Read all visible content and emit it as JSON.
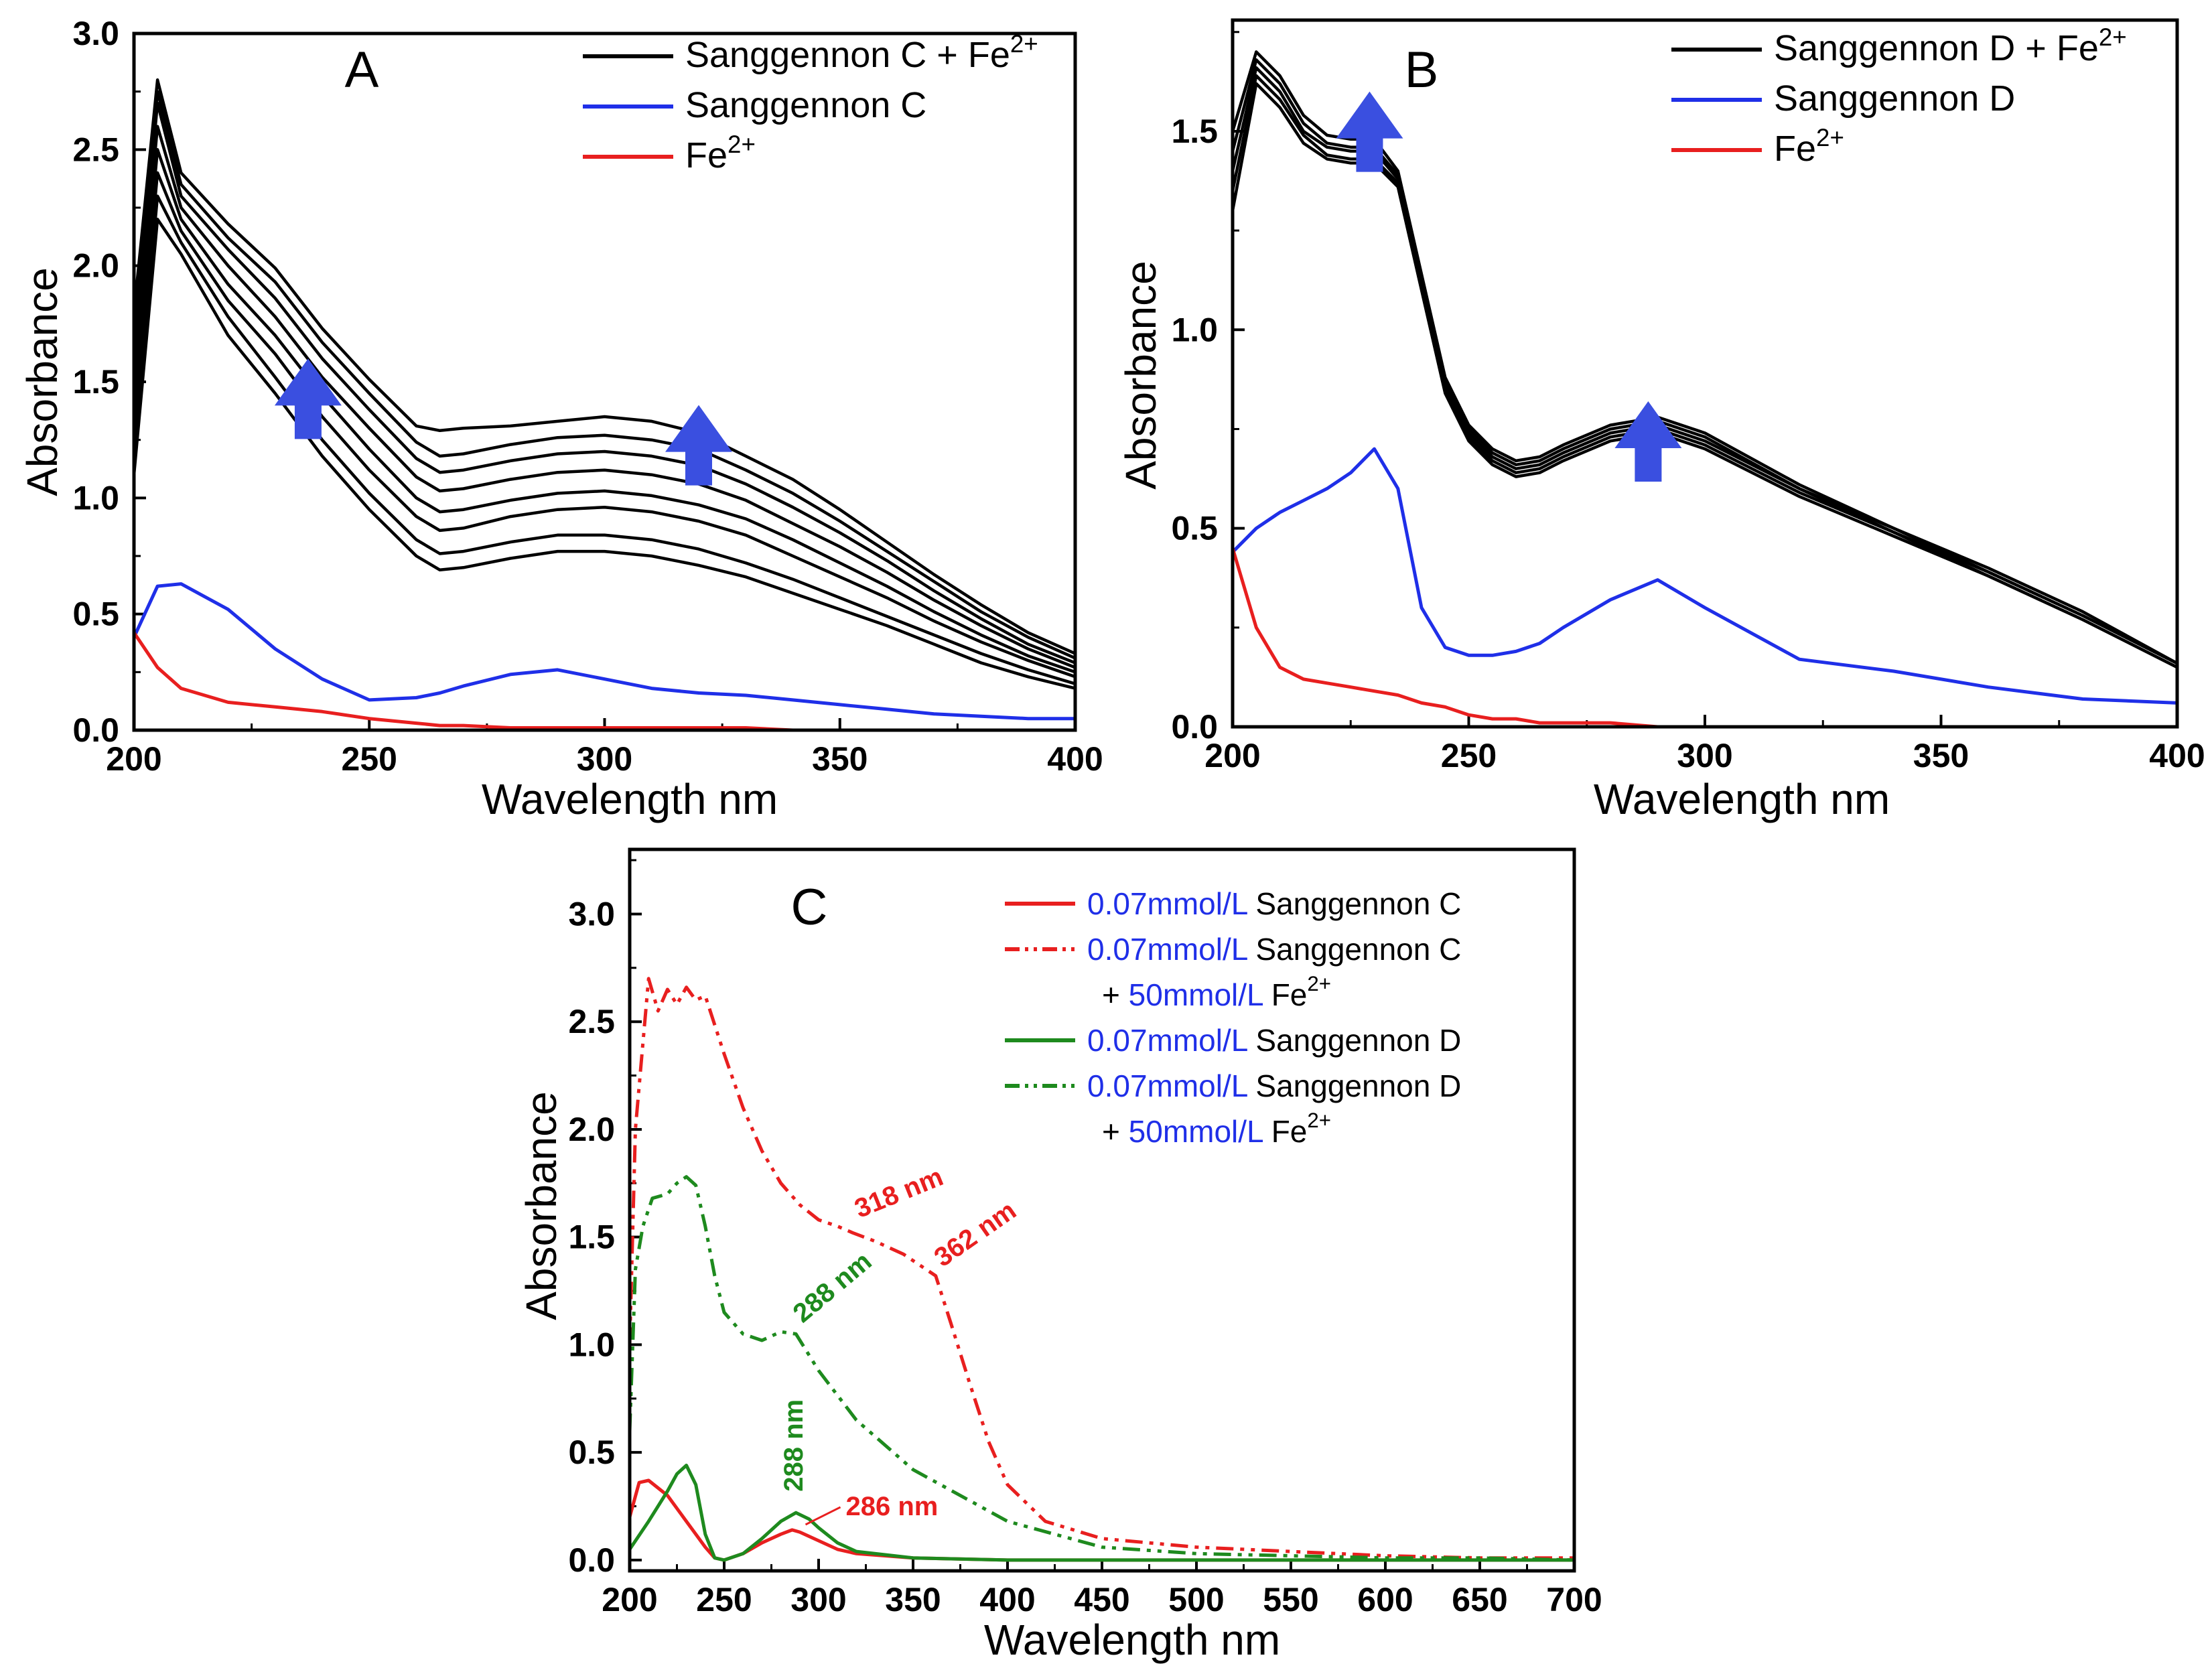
{
  "chart_data": [
    {
      "panel": "A",
      "type": "line",
      "xlabel": "Wavelength    nm",
      "ylabel": "Absorbance",
      "xlim": [
        200,
        400
      ],
      "ylim": [
        0,
        3.0
      ],
      "xticks": [
        "200",
        "250",
        "300",
        "350",
        "400"
      ],
      "yticks": [
        "0.0",
        "0.5",
        "1.0",
        "1.5",
        "2.0",
        "2.5",
        "3.0"
      ],
      "legend_position": "top-right",
      "legend": [
        {
          "base": "Sanggennon C + Fe",
          "sup": "2+",
          "color": "#000000"
        },
        {
          "base": "Sanggennon C",
          "sup": "",
          "color": "#1f2fe8"
        },
        {
          "base": "Fe",
          "sup": "2+",
          "color": "#e81f1f"
        }
      ],
      "arrows": [
        {
          "x": 237,
          "y": 1.6
        },
        {
          "x": 320,
          "y": 1.4
        }
      ],
      "x": [
        200,
        205,
        210,
        220,
        230,
        240,
        250,
        260,
        265,
        270,
        280,
        290,
        300,
        310,
        320,
        330,
        340,
        350,
        360,
        370,
        380,
        390,
        400
      ],
      "series": [
        {
          "name": "Sanggennon C + Fe2+ (1)",
          "color": "#000000",
          "values": [
            1.1,
            2.2,
            2.05,
            1.7,
            1.45,
            1.18,
            0.95,
            0.75,
            0.69,
            0.7,
            0.74,
            0.77,
            0.77,
            0.75,
            0.71,
            0.66,
            0.59,
            0.52,
            0.45,
            0.37,
            0.29,
            0.23,
            0.18
          ]
        },
        {
          "name": "Sanggennon C + Fe2+ (2)",
          "color": "#000000",
          "values": [
            1.2,
            2.3,
            2.1,
            1.78,
            1.52,
            1.25,
            1.02,
            0.82,
            0.76,
            0.77,
            0.81,
            0.84,
            0.84,
            0.82,
            0.78,
            0.72,
            0.65,
            0.57,
            0.49,
            0.41,
            0.33,
            0.26,
            0.2
          ]
        },
        {
          "name": "Sanggennon C + Fe2+ (3)",
          "color": "#000000",
          "values": [
            1.3,
            2.4,
            2.15,
            1.85,
            1.62,
            1.35,
            1.12,
            0.92,
            0.86,
            0.87,
            0.92,
            0.95,
            0.96,
            0.94,
            0.9,
            0.84,
            0.75,
            0.66,
            0.57,
            0.47,
            0.38,
            0.3,
            0.23
          ]
        },
        {
          "name": "Sanggennon C + Fe2+ (4)",
          "color": "#000000",
          "values": [
            1.4,
            2.5,
            2.2,
            1.92,
            1.7,
            1.44,
            1.21,
            1.0,
            0.94,
            0.95,
            0.99,
            1.02,
            1.03,
            1.01,
            0.97,
            0.91,
            0.82,
            0.72,
            0.62,
            0.51,
            0.41,
            0.32,
            0.25
          ]
        },
        {
          "name": "Sanggennon C + Fe2+ (5)",
          "color": "#000000",
          "values": [
            1.5,
            2.6,
            2.25,
            2.0,
            1.78,
            1.52,
            1.3,
            1.09,
            1.03,
            1.04,
            1.08,
            1.11,
            1.12,
            1.1,
            1.06,
            0.99,
            0.89,
            0.79,
            0.68,
            0.56,
            0.45,
            0.35,
            0.27
          ]
        },
        {
          "name": "Sanggennon C + Fe2+ (6)",
          "color": "#000000",
          "values": [
            1.6,
            2.7,
            2.3,
            2.07,
            1.86,
            1.6,
            1.38,
            1.17,
            1.11,
            1.12,
            1.16,
            1.19,
            1.2,
            1.18,
            1.14,
            1.06,
            0.96,
            0.85,
            0.73,
            0.6,
            0.48,
            0.37,
            0.29
          ]
        },
        {
          "name": "Sanggennon C + Fe2+ (7)",
          "color": "#000000",
          "values": [
            1.7,
            2.75,
            2.35,
            2.12,
            1.93,
            1.67,
            1.45,
            1.24,
            1.18,
            1.19,
            1.23,
            1.26,
            1.27,
            1.25,
            1.21,
            1.12,
            1.02,
            0.9,
            0.77,
            0.64,
            0.51,
            0.4,
            0.31
          ]
        },
        {
          "name": "Sanggennon C + Fe2+ (8)",
          "color": "#000000",
          "values": [
            1.8,
            2.8,
            2.4,
            2.18,
            1.99,
            1.73,
            1.51,
            1.31,
            1.29,
            1.3,
            1.31,
            1.33,
            1.35,
            1.33,
            1.28,
            1.18,
            1.08,
            0.95,
            0.81,
            0.67,
            0.54,
            0.42,
            0.33
          ]
        },
        {
          "name": "Sanggennon C",
          "color": "#1f2fe8",
          "values": [
            0.4,
            0.62,
            0.63,
            0.52,
            0.35,
            0.22,
            0.13,
            0.14,
            0.16,
            0.19,
            0.24,
            0.26,
            0.22,
            0.18,
            0.16,
            0.15,
            0.13,
            0.11,
            0.09,
            0.07,
            0.06,
            0.05,
            0.05
          ]
        },
        {
          "name": "Fe2+",
          "color": "#e81f1f",
          "values": [
            0.42,
            0.27,
            0.18,
            0.12,
            0.1,
            0.08,
            0.05,
            0.03,
            0.02,
            0.02,
            0.01,
            0.01,
            0.01,
            0.01,
            0.01,
            0.01,
            0.0,
            0.0,
            0.0,
            0.0,
            0.0,
            0.0,
            0.0
          ]
        }
      ]
    },
    {
      "panel": "B",
      "type": "line",
      "xlabel": "Wavelength  nm",
      "ylabel": "Absorbance",
      "xlim": [
        200,
        400
      ],
      "ylim": [
        0,
        1.78
      ],
      "xticks": [
        "200",
        "250",
        "300",
        "350",
        "400"
      ],
      "yticks": [
        "0.0",
        "0.5",
        "1.0",
        "1.5"
      ],
      "legend_position": "top-right",
      "legend": [
        {
          "base": "Sanggennon D + Fe",
          "sup": "2+",
          "color": "#000000"
        },
        {
          "base": "Sanggennon D",
          "sup": "",
          "color": "#1f2fe8"
        },
        {
          "base": "Fe",
          "sup": "2+",
          "color": "#e81f1f"
        }
      ],
      "arrows": [
        {
          "x": 229,
          "y": 1.6
        },
        {
          "x": 288,
          "y": 0.82
        }
      ],
      "x": [
        200,
        205,
        210,
        215,
        220,
        225,
        230,
        235,
        240,
        245,
        250,
        255,
        260,
        265,
        270,
        280,
        290,
        300,
        320,
        340,
        360,
        380,
        400
      ],
      "series": [
        {
          "name": "Sanggennon D + Fe2+ (1)",
          "color": "#000000",
          "values": [
            1.3,
            1.62,
            1.56,
            1.47,
            1.43,
            1.42,
            1.42,
            1.36,
            1.1,
            0.84,
            0.72,
            0.66,
            0.63,
            0.64,
            0.67,
            0.72,
            0.74,
            0.7,
            0.58,
            0.48,
            0.38,
            0.27,
            0.15
          ]
        },
        {
          "name": "Sanggennon D + Fe2+ (2)",
          "color": "#000000",
          "values": [
            1.35,
            1.64,
            1.58,
            1.49,
            1.44,
            1.43,
            1.43,
            1.37,
            1.11,
            0.85,
            0.73,
            0.67,
            0.64,
            0.65,
            0.68,
            0.73,
            0.75,
            0.71,
            0.59,
            0.49,
            0.38,
            0.27,
            0.15
          ]
        },
        {
          "name": "Sanggennon D + Fe2+ (3)",
          "color": "#000000",
          "values": [
            1.4,
            1.66,
            1.6,
            1.5,
            1.46,
            1.45,
            1.45,
            1.38,
            1.12,
            0.86,
            0.74,
            0.68,
            0.65,
            0.66,
            0.69,
            0.74,
            0.76,
            0.72,
            0.6,
            0.49,
            0.39,
            0.28,
            0.16
          ]
        },
        {
          "name": "Sanggennon D + Fe2+ (4)",
          "color": "#000000",
          "values": [
            1.45,
            1.68,
            1.62,
            1.52,
            1.47,
            1.46,
            1.46,
            1.39,
            1.13,
            0.87,
            0.75,
            0.69,
            0.66,
            0.67,
            0.7,
            0.75,
            0.77,
            0.73,
            0.6,
            0.5,
            0.39,
            0.28,
            0.16
          ]
        },
        {
          "name": "Sanggennon D + Fe2+ (5)",
          "color": "#000000",
          "values": [
            1.5,
            1.7,
            1.64,
            1.54,
            1.49,
            1.48,
            1.48,
            1.4,
            1.14,
            0.88,
            0.76,
            0.7,
            0.67,
            0.68,
            0.71,
            0.76,
            0.78,
            0.74,
            0.61,
            0.5,
            0.4,
            0.29,
            0.16
          ]
        },
        {
          "name": "Sanggennon D",
          "color": "#1f2fe8",
          "values": [
            0.44,
            0.5,
            0.54,
            0.57,
            0.6,
            0.64,
            0.7,
            0.6,
            0.3,
            0.2,
            0.18,
            0.18,
            0.19,
            0.21,
            0.25,
            0.32,
            0.37,
            0.3,
            0.17,
            0.14,
            0.1,
            0.07,
            0.06
          ]
        },
        {
          "name": "Fe2+",
          "color": "#e81f1f",
          "values": [
            0.45,
            0.25,
            0.15,
            0.12,
            0.11,
            0.1,
            0.09,
            0.08,
            0.06,
            0.05,
            0.03,
            0.02,
            0.02,
            0.01,
            0.01,
            0.01,
            0.0,
            0.0,
            0.0,
            0.0,
            0.0,
            0.0,
            0.0
          ]
        }
      ]
    },
    {
      "panel": "C",
      "type": "line",
      "xlabel": "Wavelength    nm",
      "ylabel": "Absorbance",
      "xlim": [
        200,
        700
      ],
      "ylim": [
        -0.05,
        3.3
      ],
      "xticks": [
        "200",
        "250",
        "300",
        "350",
        "400",
        "450",
        "500",
        "550",
        "600",
        "650",
        "700"
      ],
      "yticks": [
        "0.0",
        "0.5",
        "1.0",
        "1.5",
        "2.0",
        "2.5",
        "3.0"
      ],
      "legend_position": "top-right",
      "legend": [
        {
          "conc": "0.07mmol/L",
          "name": " Sanggennon C",
          "line2": "",
          "color": "#e81f1f",
          "dash": "solid"
        },
        {
          "conc": "0.07mmol/L",
          "name": " Sanggennon C",
          "line2": "50mmol/L",
          "line2_prefix": "+ ",
          "line2_base": " Fe",
          "line2_sup": "2+",
          "color": "#e81f1f",
          "dash": "dashdotdot"
        },
        {
          "conc": "0.07mmol/L",
          "name": " Sanggennon D",
          "line2": "",
          "color": "#1e8a1e",
          "dash": "solid"
        },
        {
          "conc": "0.07mmol/L",
          "name": " Sanggennon D",
          "line2": "50mmol/L",
          "line2_prefix": "+ ",
          "line2_base": " Fe",
          "line2_sup": "2+",
          "color": "#1e8a1e",
          "dash": "dashdotdot"
        }
      ],
      "annotations": [
        {
          "text": "318 nm",
          "x": 318,
          "y": 1.55,
          "color": "#e81f1f",
          "rotate": -22
        },
        {
          "text": "362 nm",
          "x": 362,
          "y": 1.32,
          "color": "#e81f1f",
          "rotate": -35
        },
        {
          "text": "288 nm",
          "x": 288,
          "y": 1.06,
          "color": "#1e8a1e",
          "rotate": -40
        },
        {
          "text": "288 nm",
          "x": 288,
          "y": 0.24,
          "color": "#1e8a1e",
          "rotate": -90
        },
        {
          "text": "286 nm",
          "x": 286,
          "y": 0.14,
          "color": "#e81f1f",
          "rotate": 0
        }
      ],
      "series": [
        {
          "name": "0.07mmol/L Sanggennon C",
          "color": "#e81f1f",
          "dash": "solid",
          "x": [
            200,
            205,
            210,
            220,
            230,
            240,
            245,
            250,
            260,
            270,
            280,
            286,
            290,
            300,
            310,
            320,
            350,
            400,
            700
          ],
          "values": [
            0.2,
            0.36,
            0.37,
            0.3,
            0.18,
            0.06,
            0.01,
            0.0,
            0.03,
            0.08,
            0.12,
            0.14,
            0.13,
            0.09,
            0.05,
            0.03,
            0.01,
            0.0,
            0.0
          ]
        },
        {
          "name": "0.07mmol/L Sanggennon C + 50mmol/L Fe2+",
          "color": "#e81f1f",
          "dash": "dashdotdot",
          "x": [
            200,
            203,
            206,
            210,
            215,
            220,
            225,
            230,
            235,
            240,
            250,
            260,
            270,
            280,
            290,
            300,
            310,
            318,
            330,
            345,
            362,
            370,
            380,
            390,
            400,
            420,
            450,
            500,
            550,
            600,
            650,
            700
          ],
          "values": [
            1.0,
            2.0,
            2.3,
            2.7,
            2.55,
            2.65,
            2.58,
            2.66,
            2.6,
            2.62,
            2.35,
            2.1,
            1.9,
            1.75,
            1.65,
            1.58,
            1.55,
            1.52,
            1.48,
            1.42,
            1.32,
            1.1,
            0.82,
            0.55,
            0.35,
            0.18,
            0.1,
            0.06,
            0.04,
            0.02,
            0.01,
            0.01
          ]
        },
        {
          "name": "0.07mmol/L Sanggennon D",
          "color": "#1e8a1e",
          "dash": "solid",
          "x": [
            200,
            210,
            220,
            225,
            230,
            235,
            240,
            245,
            250,
            260,
            270,
            280,
            288,
            295,
            300,
            310,
            320,
            350,
            400,
            700
          ],
          "values": [
            0.05,
            0.18,
            0.32,
            0.4,
            0.44,
            0.35,
            0.12,
            0.01,
            0.0,
            0.03,
            0.1,
            0.18,
            0.22,
            0.19,
            0.15,
            0.08,
            0.04,
            0.01,
            0.0,
            0.0
          ]
        },
        {
          "name": "0.07mmol/L Sanggennon D + 50mmol/L Fe2+",
          "color": "#1e8a1e",
          "dash": "dashdotdot",
          "x": [
            200,
            203,
            207,
            212,
            220,
            225,
            230,
            235,
            240,
            245,
            250,
            260,
            270,
            280,
            288,
            300,
            320,
            350,
            400,
            450,
            500,
            550,
            600,
            650,
            700
          ],
          "values": [
            0.6,
            1.35,
            1.55,
            1.68,
            1.7,
            1.75,
            1.78,
            1.74,
            1.55,
            1.32,
            1.15,
            1.05,
            1.02,
            1.06,
            1.05,
            0.88,
            0.65,
            0.42,
            0.18,
            0.06,
            0.03,
            0.02,
            0.01,
            0.01,
            0.0
          ]
        }
      ]
    }
  ]
}
